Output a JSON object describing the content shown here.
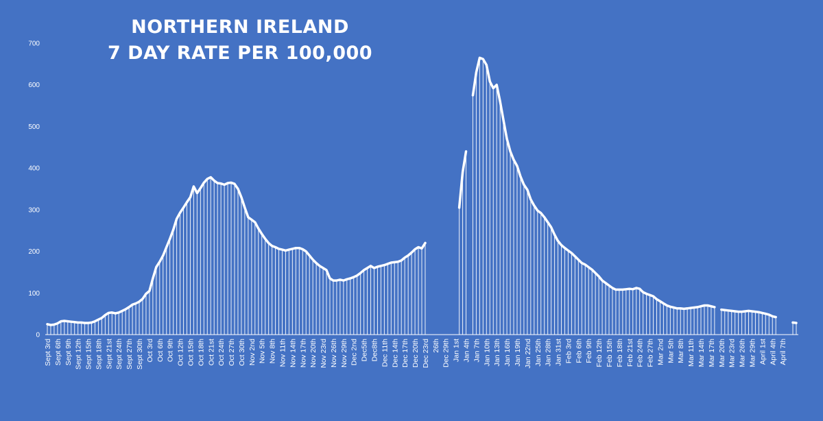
{
  "chart_data": {
    "type": "line",
    "title_lines": [
      "NORTHERN IRELAND",
      "7 DAY RATE PER 100,000"
    ],
    "xlabel": "",
    "ylabel": "",
    "ylim": [
      0,
      700
    ],
    "yticks": [
      0,
      100,
      200,
      300,
      400,
      500,
      600,
      700
    ],
    "grid": false,
    "legend": "none",
    "bars_under_line": true,
    "colors": {
      "background": "#4472c4",
      "line": "#ffffff",
      "bars": "#ffffff",
      "text": "#ffffff"
    },
    "x_tick_labels": [
      "Sept 3rd",
      "Sept 6th",
      "Sept 9th",
      "Sept 12th",
      "Sept 15th",
      "Sept 18th",
      "Sept 21st",
      "Sept 24th",
      "Sept 27th",
      "Sept 30th",
      "Oct 3rd",
      "Oct 6th",
      "Oct 9th",
      "Oct 12th",
      "Oct 15th",
      "Oct 18th",
      "Oct 21st",
      "Oct 24th",
      "Oct 27th",
      "Oct 30th",
      "Nov 2nd",
      "Nov 5th",
      "Nov 8th",
      "Nov 11th",
      "Nov 14th",
      "Nov 17th",
      "Nov 20th",
      "Nov 23rd",
      "Nov 26th",
      "Nov 29th",
      "Dec 2nd",
      "Dec5th",
      "Dec8th",
      "Dec 11th",
      "Dec 14th",
      "Dec 17th",
      "Dec 20th",
      "Dec 23rd",
      "26th",
      "Dec 29th",
      "Jan 1st",
      "Jan 4th",
      "Jan 7th",
      "Jan 10th",
      "Jan 13th",
      "Jan 16th",
      "Jan 19th",
      "Jan 22nd",
      "Jan 25th",
      "Jan 28th",
      "Jan 31st",
      "Feb 3rd",
      "Feb 6th",
      "Feb 9th",
      "Feb 12th",
      "Feb 15th",
      "Feb 18th",
      "Feb 21st",
      "Feb 24th",
      "Feb 27th",
      "Mar 2nd",
      "Mar 5th",
      "Mar 8th",
      "Mar 11th",
      "Mar 14th",
      "Mar 17th",
      "Mar 20th",
      "Mar 23rd",
      "Mar 26th",
      "Mar 29th",
      "April 1st",
      "April 4th",
      "April 7th"
    ],
    "x_start_day": "Sept 3rd",
    "x_step_days": 1,
    "values": [
      25,
      23,
      24,
      27,
      32,
      33,
      32,
      31,
      30,
      29,
      29,
      28,
      28,
      29,
      32,
      36,
      40,
      47,
      52,
      53,
      51,
      53,
      57,
      61,
      66,
      72,
      75,
      79,
      86,
      98,
      105,
      135,
      162,
      175,
      190,
      210,
      230,
      252,
      278,
      293,
      305,
      318,
      330,
      356,
      340,
      352,
      365,
      374,
      378,
      370,
      364,
      363,
      360,
      364,
      365,
      362,
      350,
      330,
      305,
      282,
      276,
      270,
      255,
      242,
      230,
      220,
      213,
      210,
      206,
      204,
      202,
      204,
      206,
      208,
      208,
      205,
      200,
      190,
      180,
      172,
      165,
      160,
      155,
      135,
      130,
      130,
      132,
      130,
      133,
      135,
      138,
      142,
      148,
      155,
      160,
      165,
      160,
      163,
      165,
      167,
      170,
      173,
      174,
      175,
      178,
      185,
      190,
      197,
      205,
      210,
      207,
      220,
      null,
      null,
      null,
      null,
      null,
      null,
      null,
      null,
      null,
      305,
      390,
      440,
      null,
      575,
      630,
      665,
      662,
      648,
      608,
      592,
      600,
      560,
      515,
      470,
      440,
      420,
      405,
      380,
      360,
      348,
      325,
      310,
      298,
      292,
      282,
      270,
      258,
      240,
      225,
      215,
      208,
      202,
      196,
      188,
      180,
      172,
      168,
      162,
      156,
      148,
      140,
      130,
      124,
      118,
      112,
      108,
      108,
      108,
      109,
      110,
      109,
      112,
      110,
      102,
      98,
      95,
      92,
      85,
      80,
      75,
      70,
      67,
      65,
      63,
      63,
      62,
      63,
      64,
      65,
      66,
      68,
      70,
      70,
      68,
      66,
      null,
      60,
      59,
      58,
      57,
      56,
      55,
      55,
      56,
      57,
      56,
      55,
      54,
      52,
      50,
      48,
      44,
      42,
      null,
      null,
      null,
      null,
      29,
      28
    ],
    "annotations": []
  }
}
